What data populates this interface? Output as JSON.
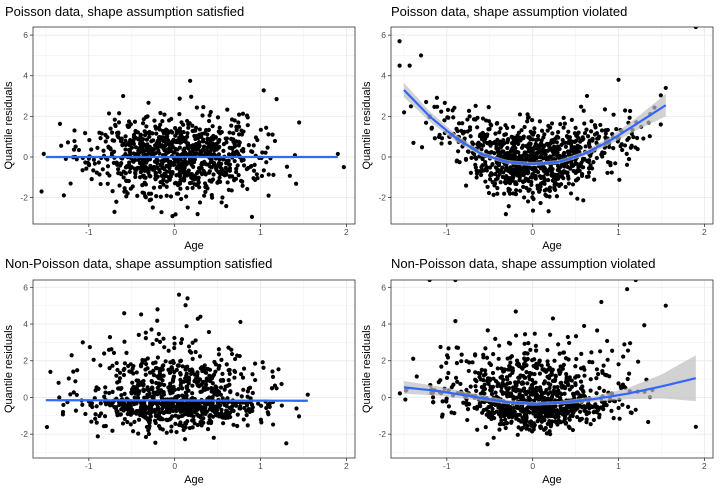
{
  "figure": {
    "panels": [
      {
        "title": "Poisson data, shape assumption satisfied",
        "xlabel": "Age",
        "ylabel": "Quantile residuals"
      },
      {
        "title": "Poisson data, shape assumption violated",
        "xlabel": "Age",
        "ylabel": "Quantile residuals"
      },
      {
        "title": "Non-Poisson data, shape assumption satisfied",
        "xlabel": "Age",
        "ylabel": "Quantile residuals"
      },
      {
        "title": "Non-Poisson data, shape assumption violated",
        "xlabel": "Age",
        "ylabel": "Quantile residuals"
      }
    ]
  },
  "chart_data": [
    {
      "type": "scatter",
      "title": "Poisson data, shape assumption satisfied",
      "xlabel": "Age",
      "ylabel": "Quantile residuals",
      "xlim": [
        -1.65,
        2.1
      ],
      "ylim": [
        -3.3,
        6.4
      ],
      "xticks": [
        -1,
        0,
        1,
        2
      ],
      "yticks": [
        -2,
        0,
        2,
        4,
        6
      ],
      "grid": true,
      "point_color": "#000000",
      "smooth_color": "#3366ff",
      "band_color": "#bfbfbf",
      "smooth": {
        "x": [
          -1.5,
          1.9
        ],
        "y": [
          0.0,
          0.0
        ],
        "band": 0.05
      },
      "points_generator": {
        "n": 900,
        "seed": 11,
        "x_sd": 0.5,
        "y_sd": 0.95,
        "curve": "flat",
        "noise": "normal"
      },
      "notable_points": [
        [
          -0.6,
          3.0
        ],
        [
          0.18,
          3.75
        ],
        [
          1.9,
          0.15
        ],
        [
          1.97,
          -0.5
        ],
        [
          0.9,
          -2.95
        ],
        [
          -1.55,
          -1.7
        ]
      ]
    },
    {
      "type": "scatter",
      "title": "Poisson data, shape assumption violated",
      "xlabel": "Age",
      "ylabel": "Quantile residuals",
      "xlim": [
        -1.65,
        2.1
      ],
      "ylim": [
        -3.3,
        6.4
      ],
      "xticks": [
        -1,
        0,
        1,
        2
      ],
      "yticks": [
        -2,
        0,
        2,
        4,
        6
      ],
      "grid": true,
      "point_color": "#000000",
      "smooth_color": "#3366ff",
      "band_color": "#bfbfbf",
      "smooth": {
        "x": [
          -1.5,
          -1.2,
          -0.9,
          -0.6,
          -0.3,
          0.0,
          0.3,
          0.6,
          0.9,
          1.2,
          1.55
        ],
        "y": [
          3.3,
          2.0,
          0.95,
          0.15,
          -0.25,
          -0.35,
          -0.25,
          0.15,
          0.8,
          1.6,
          2.55
        ],
        "band": [
          0.35,
          0.25,
          0.18,
          0.12,
          0.1,
          0.1,
          0.1,
          0.12,
          0.18,
          0.3,
          0.55
        ]
      },
      "points_generator": {
        "n": 900,
        "seed": 23,
        "x_sd": 0.5,
        "y_sd": 0.85,
        "curve": "quadratic",
        "noise": "normal"
      },
      "notable_points": [
        [
          -1.55,
          5.7
        ],
        [
          -1.3,
          5.0
        ],
        [
          -1.55,
          4.5
        ],
        [
          -1.2,
          2.0
        ],
        [
          1.9,
          6.4
        ],
        [
          1.55,
          3.4
        ],
        [
          1.0,
          3.8
        ]
      ]
    },
    {
      "type": "scatter",
      "title": "Non-Poisson data, shape assumption satisfied",
      "xlabel": "Age",
      "ylabel": "Quantile residuals",
      "xlim": [
        -1.65,
        2.1
      ],
      "ylim": [
        -3.3,
        6.4
      ],
      "xticks": [
        -1,
        0,
        1,
        2
      ],
      "yticks": [
        -2,
        0,
        2,
        4,
        6
      ],
      "grid": true,
      "point_color": "#000000",
      "smooth_color": "#3366ff",
      "band_color": "#bfbfbf",
      "smooth": {
        "x": [
          -1.5,
          1.55
        ],
        "y": [
          -0.15,
          -0.18
        ],
        "band": 0.06
      },
      "points_generator": {
        "n": 900,
        "seed": 37,
        "x_sd": 0.5,
        "y_sd": 0.9,
        "curve": "flat_skew",
        "noise": "skewed"
      },
      "notable_points": [
        [
          0.05,
          5.6
        ],
        [
          0.15,
          5.4
        ],
        [
          -0.2,
          4.8
        ],
        [
          0.3,
          4.4
        ],
        [
          -1.2,
          2.3
        ],
        [
          1.55,
          0.15
        ],
        [
          1.3,
          -2.5
        ]
      ]
    },
    {
      "type": "scatter",
      "title": "Non-Poisson data, shape assumption violated",
      "xlabel": "Age",
      "ylabel": "Quantile residuals",
      "xlim": [
        -1.65,
        2.1
      ],
      "ylim": [
        -3.3,
        6.4
      ],
      "xticks": [
        -1,
        0,
        1,
        2
      ],
      "yticks": [
        -2,
        0,
        2,
        4,
        6
      ],
      "grid": true,
      "point_color": "#000000",
      "smooth_color": "#3366ff",
      "band_color": "#bfbfbf",
      "smooth": {
        "x": [
          -1.5,
          -1.1,
          -0.7,
          -0.3,
          0.0,
          0.3,
          0.7,
          1.1,
          1.5,
          1.9
        ],
        "y": [
          0.55,
          0.35,
          0.05,
          -0.25,
          -0.35,
          -0.3,
          -0.1,
          0.2,
          0.6,
          1.05
        ],
        "band": [
          0.35,
          0.25,
          0.18,
          0.12,
          0.1,
          0.1,
          0.15,
          0.3,
          0.65,
          1.25
        ]
      },
      "points_generator": {
        "n": 900,
        "seed": 53,
        "x_sd": 0.5,
        "y_sd": 0.9,
        "curve": "mild_quadratic",
        "noise": "skewed"
      },
      "notable_points": [
        [
          -1.2,
          6.4
        ],
        [
          -0.9,
          6.4
        ],
        [
          1.2,
          6.4
        ],
        [
          1.55,
          5.0
        ],
        [
          1.9,
          -1.6
        ],
        [
          1.1,
          5.9
        ],
        [
          0.8,
          5.2
        ]
      ]
    }
  ]
}
